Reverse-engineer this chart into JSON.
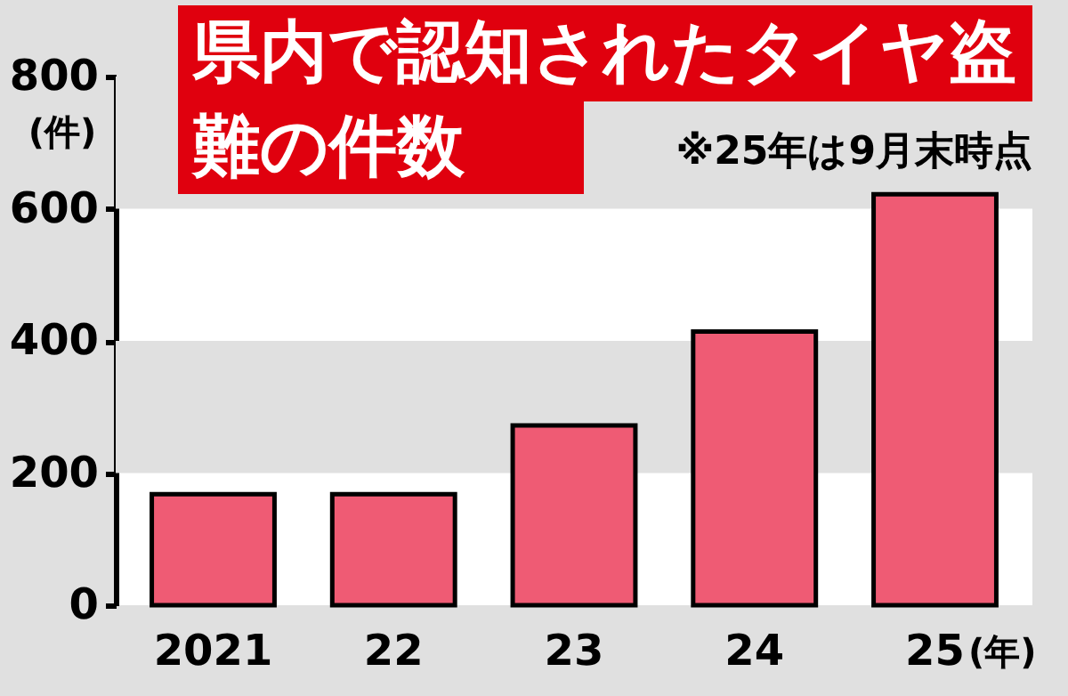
{
  "chart_data": {
    "type": "bar",
    "title": "県内で認知されたタイヤ盗難の件数",
    "annotations": [
      "※25年は9月末時点"
    ],
    "ylabel": "(件)",
    "xlabel": "(年)",
    "categories": [
      "2021",
      "22",
      "23",
      "24",
      "25"
    ],
    "series": [
      {
        "color": "#ef5b74",
        "values": [
          168,
          168,
          272,
          414,
          622
        ]
      }
    ],
    "ylim": [
      0,
      800
    ],
    "yticks": [
      0,
      200,
      400,
      600,
      800
    ],
    "bands": [
      {
        "axis": "y",
        "from": 200,
        "to": 400,
        "color": "#e0e0e0"
      },
      {
        "axis": "y",
        "from": 600,
        "to": 800,
        "color": "#e0e0e0"
      }
    ]
  }
}
